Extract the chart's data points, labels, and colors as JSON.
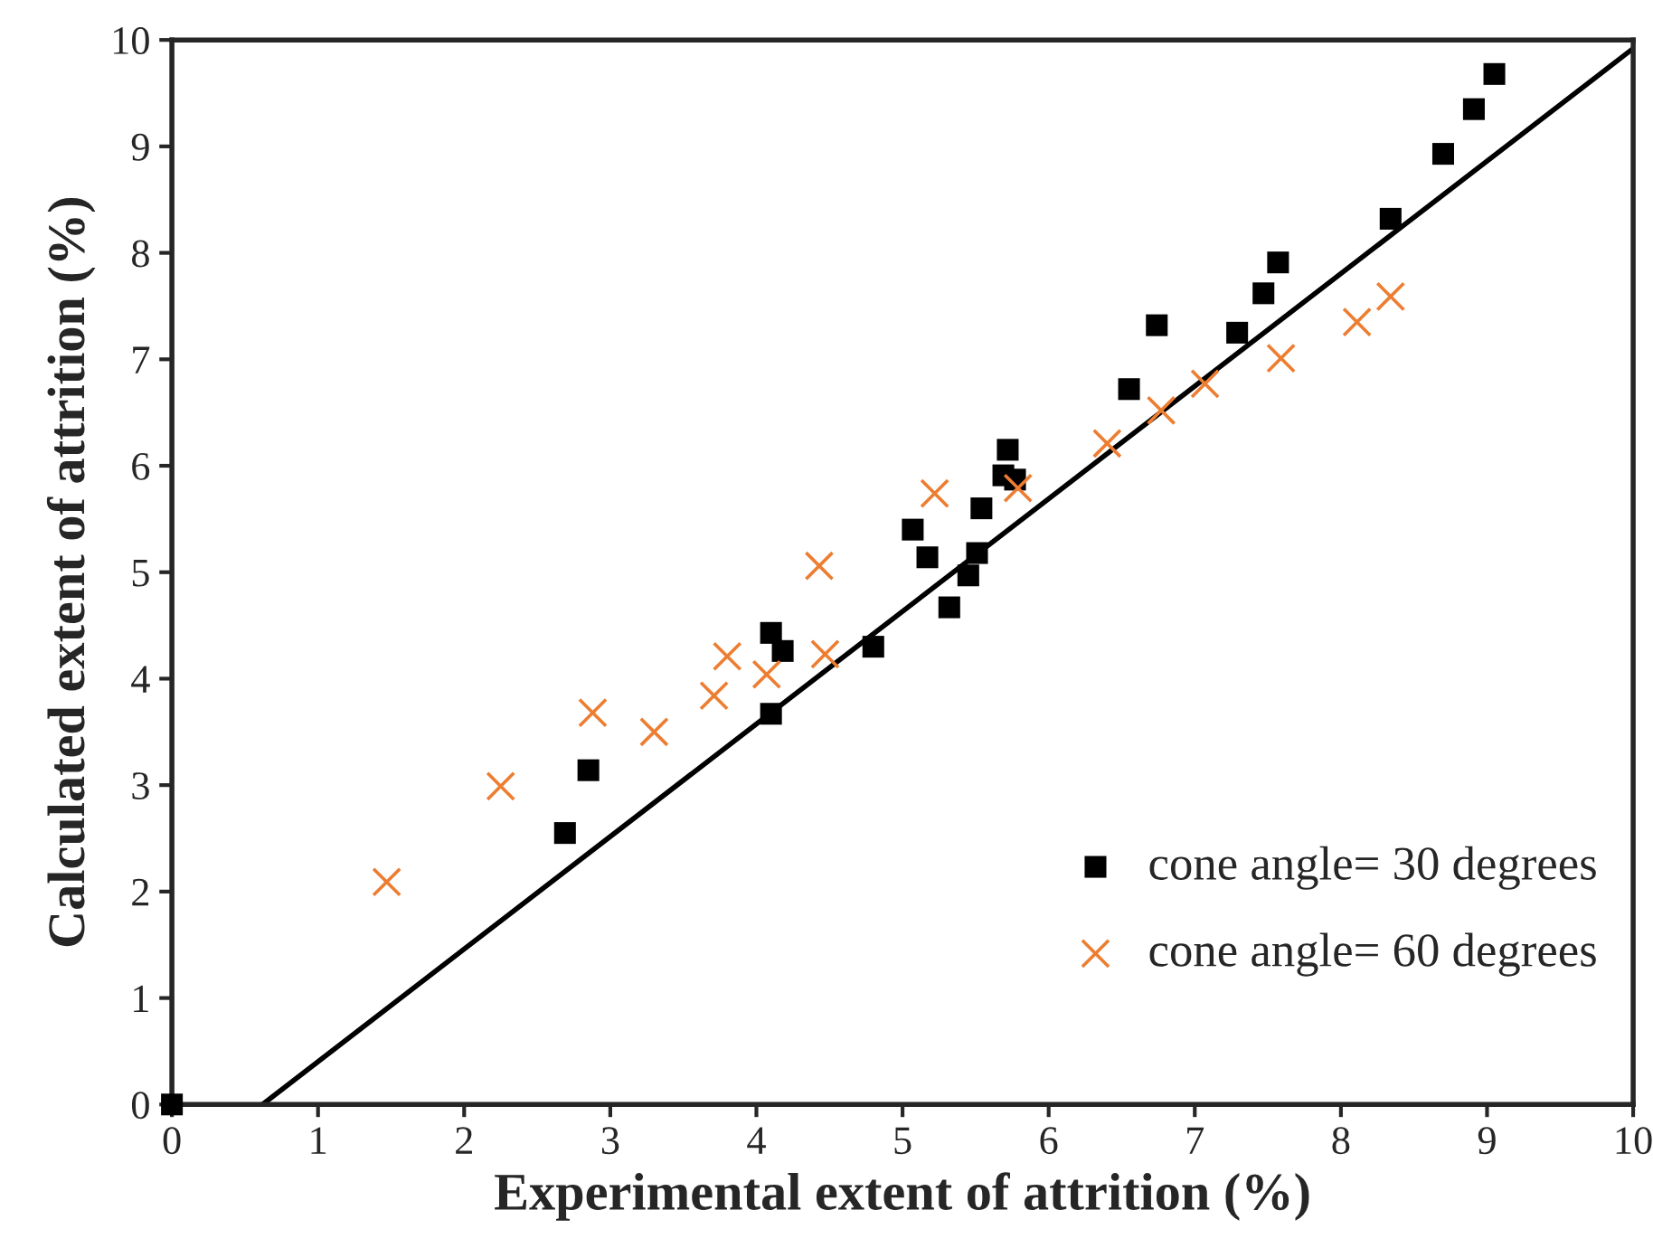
{
  "chart_data": {
    "type": "scatter",
    "xlabel": "Experimental extent of attrition (%)",
    "ylabel": "Calculated extent of attrition (%)",
    "xlim": [
      0,
      10
    ],
    "ylim": [
      0,
      10
    ],
    "xticks": [
      0,
      1,
      2,
      3,
      4,
      5,
      6,
      7,
      8,
      9,
      10
    ],
    "yticks": [
      0,
      1,
      2,
      3,
      4,
      5,
      6,
      7,
      8,
      9,
      10
    ],
    "grid": false,
    "legend": "bottom right",
    "series": [
      {
        "name": "cone angle= 30 degrees",
        "color": "#000000",
        "marker": "square",
        "x": [
          0,
          2.69,
          2.85,
          4.1,
          4.1,
          4.18,
          4.8,
          5.07,
          5.17,
          5.32,
          5.45,
          5.51,
          5.54,
          5.72,
          5.69,
          5.77,
          6.55,
          6.74,
          7.29,
          7.47,
          7.57,
          8.34,
          8.7,
          8.91,
          9.05
        ],
        "values": [
          0,
          2.55,
          3.14,
          4.43,
          3.67,
          4.26,
          4.3,
          5.4,
          5.14,
          4.67,
          4.97,
          5.18,
          5.6,
          6.15,
          5.91,
          5.87,
          6.72,
          7.32,
          7.25,
          7.62,
          7.91,
          8.32,
          8.93,
          9.35,
          9.68
        ]
      },
      {
        "name": "cone angle= 60 degrees",
        "color": "#ed7d31",
        "marker": "cross",
        "x": [
          1.47,
          2.25,
          2.88,
          3.3,
          3.71,
          3.8,
          4.07,
          4.43,
          4.47,
          5.22,
          5.79,
          6.4,
          6.77,
          7.07,
          7.59,
          8.11,
          8.34
        ],
        "values": [
          2.09,
          2.99,
          3.68,
          3.5,
          3.84,
          4.21,
          4.04,
          5.06,
          4.23,
          5.74,
          5.79,
          6.21,
          6.52,
          6.77,
          7.01,
          7.35,
          7.59
        ]
      },
      {
        "type": "line",
        "color": "#000000",
        "line_style": "solid",
        "x": [
          0.62,
          10
        ],
        "values": [
          0,
          9.92
        ]
      }
    ]
  }
}
